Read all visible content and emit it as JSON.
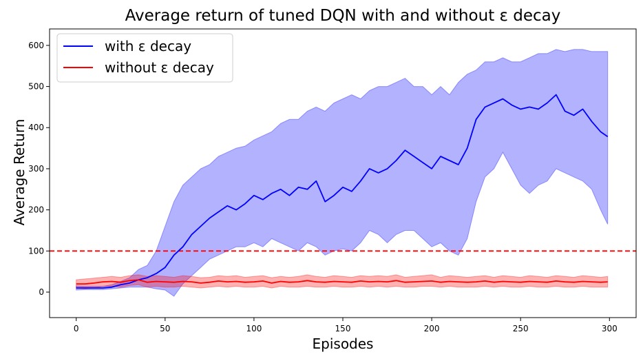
{
  "chart_data": {
    "type": "line",
    "title": "Average return of tuned DQN with and without ε decay",
    "xlabel": "Episodes",
    "ylabel": "Average Return",
    "xlim": [
      -15,
      315
    ],
    "ylim": [
      -62,
      640
    ],
    "x_ticks": [
      0,
      50,
      100,
      150,
      200,
      250,
      300
    ],
    "y_ticks": [
      0,
      100,
      200,
      300,
      400,
      500,
      600
    ],
    "grid": false,
    "legend_position": "top-left",
    "reference_line": {
      "y": 100,
      "color": "#ff0000",
      "style": "dashed"
    },
    "x": [
      0,
      5,
      10,
      15,
      20,
      25,
      30,
      35,
      40,
      45,
      50,
      55,
      60,
      65,
      70,
      75,
      80,
      85,
      90,
      95,
      100,
      105,
      110,
      115,
      120,
      125,
      130,
      135,
      140,
      145,
      150,
      155,
      160,
      165,
      170,
      175,
      180,
      185,
      190,
      195,
      200,
      205,
      210,
      215,
      220,
      225,
      230,
      235,
      240,
      245,
      250,
      255,
      260,
      265,
      270,
      275,
      280,
      285,
      290,
      295,
      299
    ],
    "series": [
      {
        "name": "with ε decay",
        "color": "#0000ff",
        "band_color": "#0000ff",
        "mean": [
          10,
          10,
          10,
          10,
          12,
          18,
          22,
          30,
          35,
          45,
          60,
          90,
          110,
          140,
          160,
          180,
          195,
          210,
          200,
          215,
          235,
          225,
          240,
          250,
          235,
          255,
          250,
          270,
          220,
          235,
          255,
          245,
          270,
          300,
          290,
          300,
          320,
          345,
          330,
          315,
          300,
          330,
          320,
          310,
          350,
          420,
          450,
          460,
          470,
          455,
          445,
          450,
          445,
          460,
          480,
          440,
          430,
          445,
          415,
          390,
          378
        ],
        "upper": [
          15,
          14,
          14,
          14,
          18,
          26,
          35,
          55,
          65,
          100,
          160,
          220,
          260,
          280,
          300,
          310,
          330,
          340,
          350,
          355,
          370,
          380,
          390,
          410,
          420,
          420,
          440,
          450,
          440,
          460,
          470,
          480,
          470,
          490,
          500,
          500,
          510,
          520,
          500,
          500,
          480,
          500,
          480,
          510,
          530,
          540,
          560,
          560,
          570,
          560,
          560,
          570,
          580,
          580,
          590,
          585,
          590,
          590,
          585,
          585,
          585
        ],
        "lower": [
          5,
          6,
          6,
          6,
          8,
          10,
          12,
          12,
          12,
          8,
          5,
          -10,
          20,
          40,
          60,
          80,
          90,
          100,
          110,
          110,
          120,
          110,
          130,
          120,
          110,
          100,
          120,
          110,
          90,
          100,
          105,
          100,
          120,
          150,
          140,
          120,
          140,
          150,
          150,
          130,
          110,
          120,
          100,
          90,
          130,
          220,
          280,
          300,
          340,
          300,
          260,
          240,
          260,
          270,
          300,
          290,
          280,
          270,
          250,
          200,
          165
        ]
      },
      {
        "name": "without ε decay",
        "color": "#ff0000",
        "band_color": "#ff0000",
        "mean": [
          20,
          20,
          22,
          25,
          26,
          24,
          28,
          30,
          24,
          26,
          25,
          24,
          26,
          25,
          22,
          24,
          27,
          25,
          26,
          24,
          25,
          27,
          22,
          26,
          24,
          25,
          28,
          25,
          24,
          26,
          25,
          24,
          27,
          25,
          26,
          25,
          28,
          24,
          25,
          26,
          27,
          24,
          26,
          25,
          24,
          25,
          27,
          24,
          26,
          25,
          24,
          26,
          25,
          24,
          27,
          25,
          24,
          26,
          25,
          24,
          25
        ],
        "upper": [
          30,
          32,
          34,
          36,
          38,
          36,
          40,
          42,
          38,
          40,
          38,
          36,
          40,
          38,
          35,
          36,
          40,
          38,
          40,
          36,
          38,
          40,
          35,
          38,
          36,
          38,
          42,
          38,
          36,
          40,
          38,
          36,
          40,
          38,
          40,
          38,
          42,
          36,
          38,
          40,
          42,
          36,
          40,
          38,
          36,
          38,
          40,
          36,
          40,
          38,
          36,
          40,
          38,
          36,
          40,
          38,
          36,
          40,
          38,
          36,
          38
        ],
        "lower": [
          10,
          8,
          10,
          14,
          14,
          12,
          16,
          18,
          12,
          14,
          12,
          12,
          14,
          12,
          10,
          12,
          14,
          12,
          14,
          12,
          12,
          14,
          10,
          14,
          12,
          12,
          14,
          12,
          12,
          14,
          12,
          12,
          14,
          12,
          14,
          12,
          14,
          12,
          12,
          14,
          14,
          12,
          14,
          12,
          12,
          12,
          14,
          12,
          14,
          12,
          12,
          14,
          12,
          12,
          14,
          12,
          12,
          14,
          12,
          12,
          12
        ]
      }
    ]
  }
}
